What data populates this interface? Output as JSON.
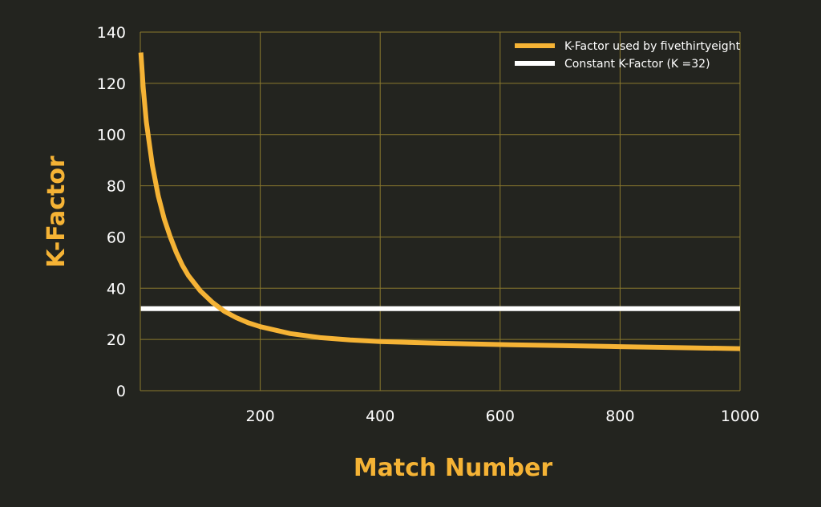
{
  "chart_data": {
    "type": "line",
    "title": "",
    "xlabel": "Match Number",
    "ylabel": "K-Factor",
    "xlim": [
      1,
      1000
    ],
    "ylim": [
      0,
      140
    ],
    "xticks": [
      200,
      400,
      600,
      800,
      1000
    ],
    "yticks": [
      0,
      20,
      40,
      60,
      80,
      100,
      120,
      140
    ],
    "grid": true,
    "legend_position": "top-right",
    "series": [
      {
        "name": "K-Factor used by fivethirtyeight",
        "color": "#f5b335",
        "x": [
          1,
          5,
          10,
          20,
          30,
          40,
          50,
          60,
          70,
          80,
          90,
          100,
          120,
          140,
          160,
          180,
          200,
          250,
          300,
          350,
          400,
          500,
          600,
          700,
          800,
          900,
          1000
        ],
        "y": [
          132,
          118,
          105,
          88,
          76,
          67,
          60,
          54,
          49,
          45,
          42,
          39,
          34.5,
          31,
          28.5,
          26.5,
          25,
          22.3,
          20.7,
          19.8,
          19.2,
          18.5,
          18.0,
          17.6,
          17.2,
          16.8,
          16.4
        ]
      },
      {
        "name": "Constant K-Factor (K =32)",
        "color": "#ffffff",
        "x": [
          1,
          1000
        ],
        "y": [
          32,
          32
        ]
      }
    ]
  }
}
